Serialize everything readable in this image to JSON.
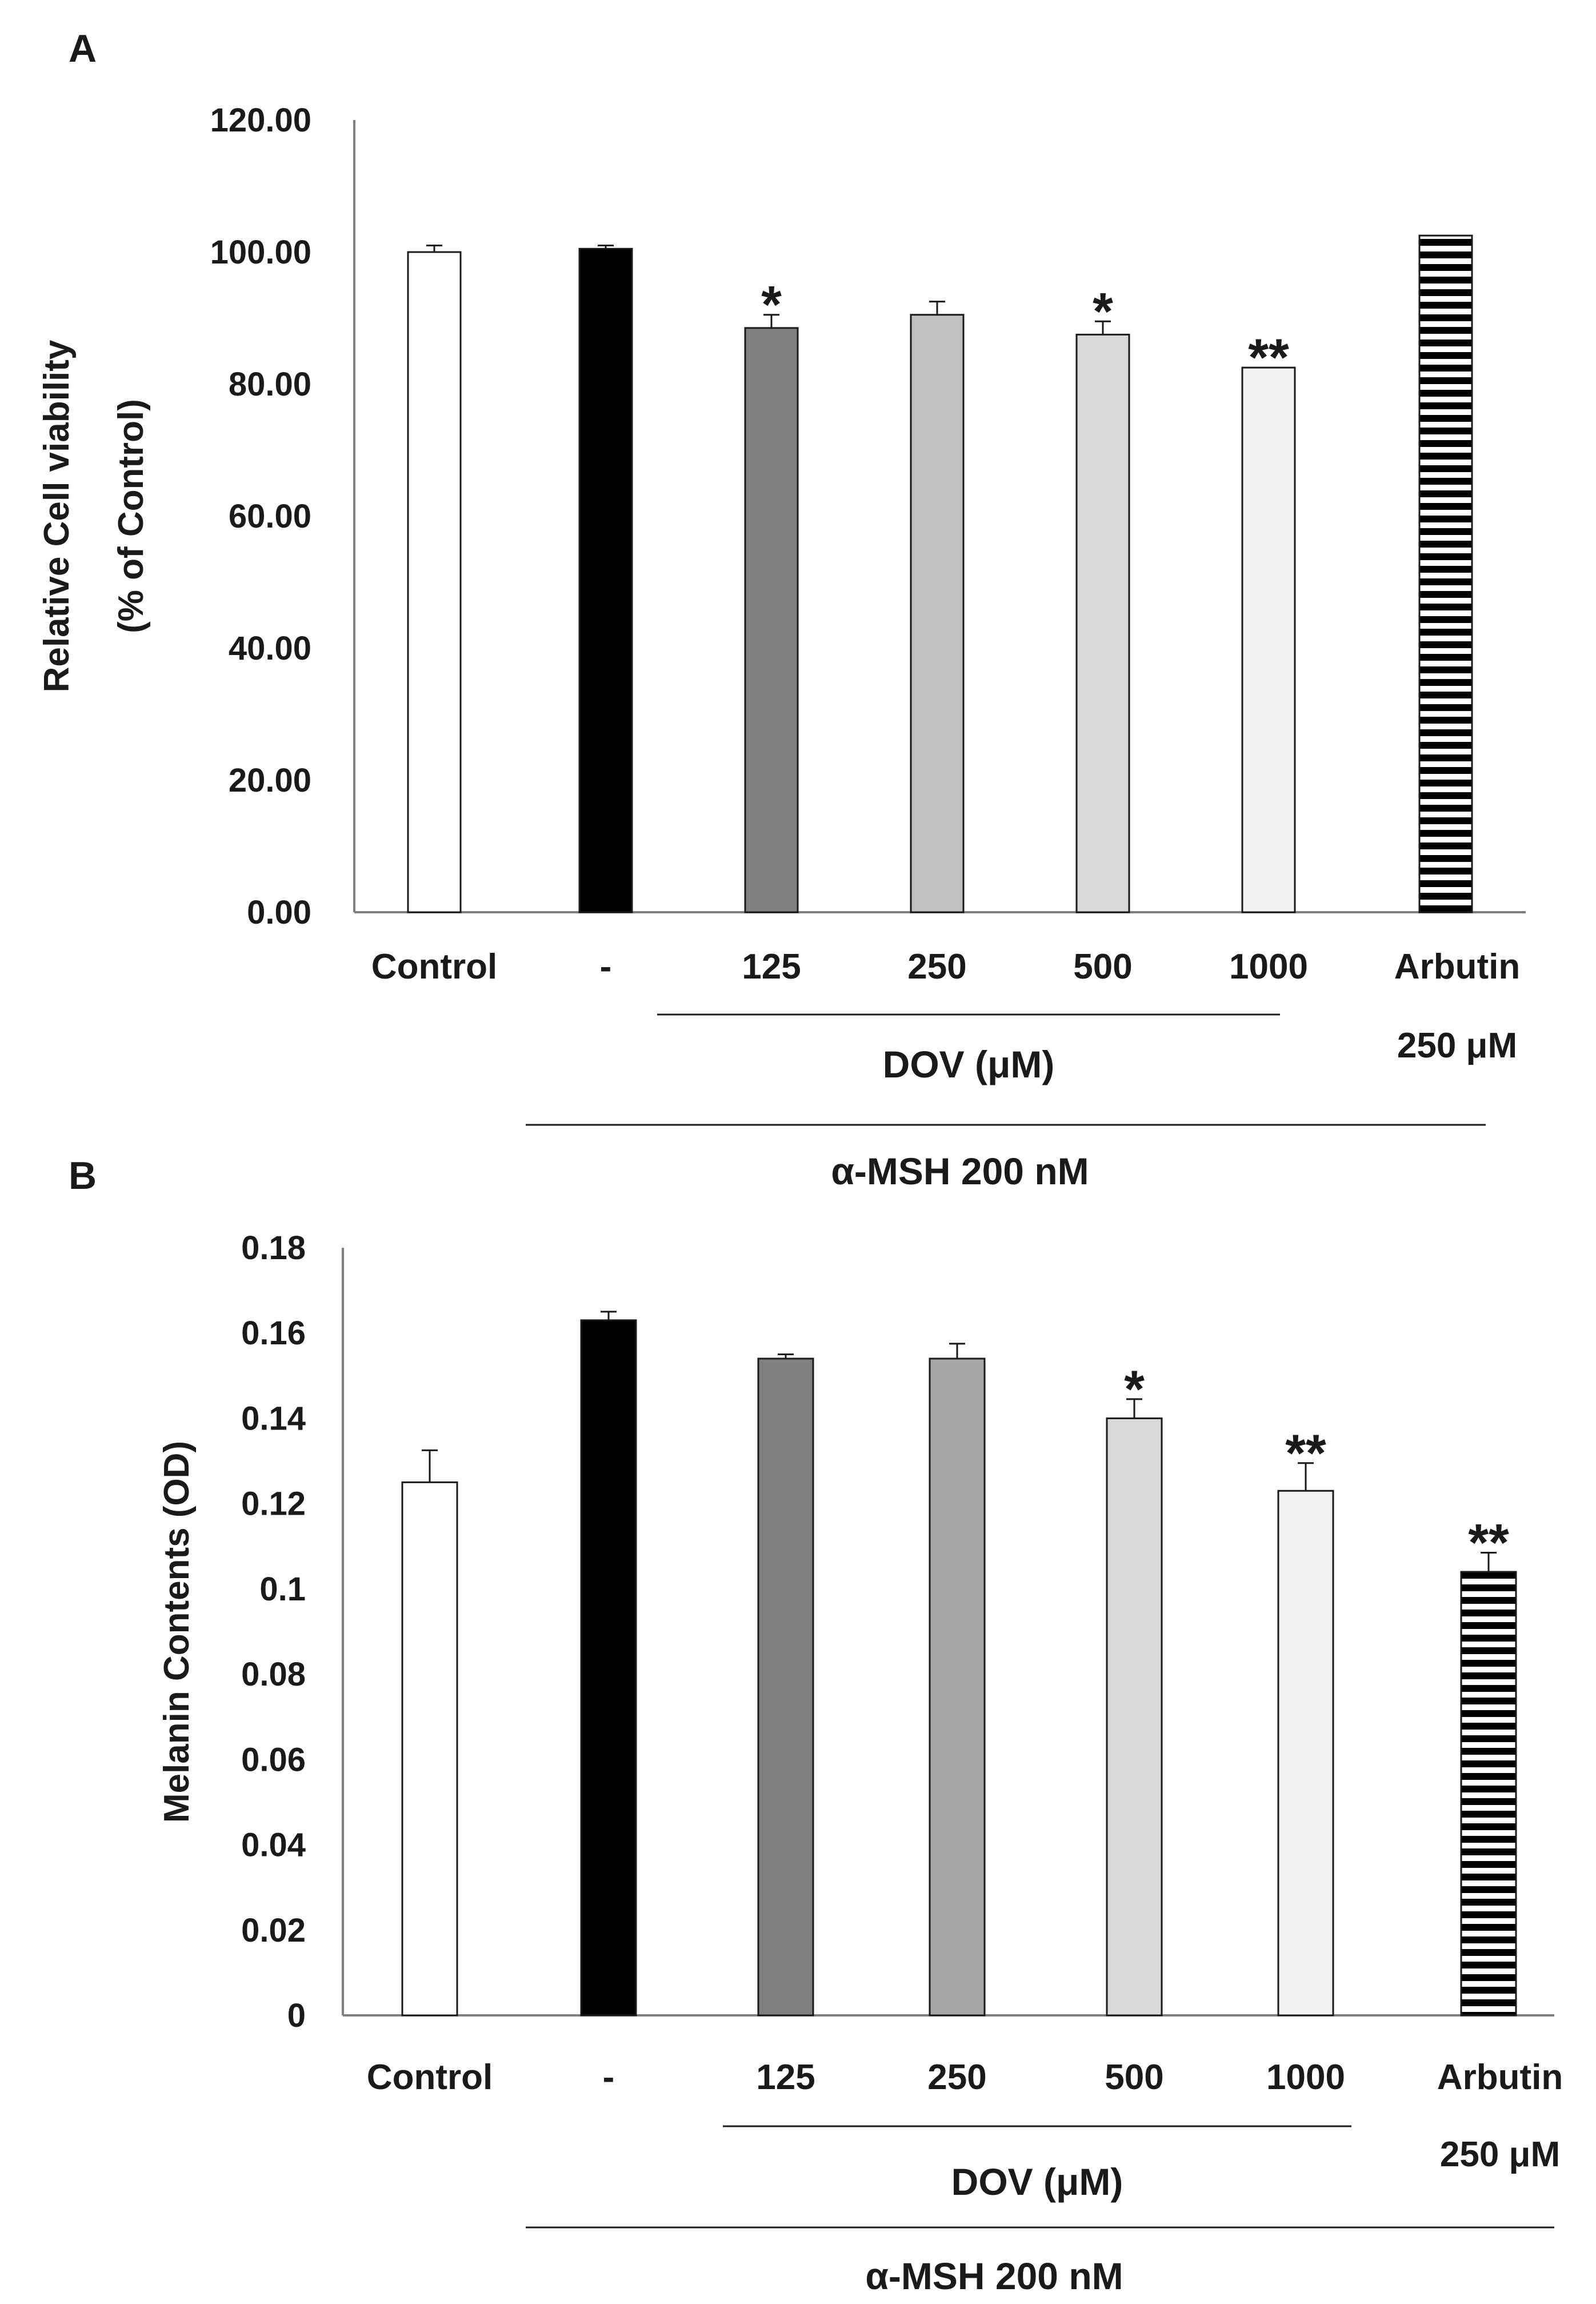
{
  "chart_data": [
    {
      "type": "bar",
      "panel_label": "A",
      "ylabel_lines": [
        "Relative Cell viability",
        "(% of Control)"
      ],
      "ylim": [
        0,
        120
      ],
      "yticks": [
        "0.00",
        "20.00",
        "40.00",
        "60.00",
        "80.00",
        "100.00",
        "120.00"
      ],
      "ytick_values": [
        0,
        20,
        40,
        60,
        80,
        100,
        120
      ],
      "categories": [
        "Control",
        "-",
        "125",
        "250",
        "500",
        "1000",
        "Arbutin"
      ],
      "category_sublabel": {
        "index": 6,
        "text": "250 μM"
      },
      "values": [
        100,
        100.5,
        88.5,
        90.5,
        87.5,
        82.5,
        102.5
      ],
      "errors": [
        1,
        0.5,
        2,
        2,
        2,
        0,
        0
      ],
      "significance": [
        "",
        "",
        "*",
        "",
        "*",
        "**",
        ""
      ],
      "fills": [
        "#ffffff",
        "#000000",
        "#808080",
        "#c0c0c0",
        "#d9d9d9",
        "#f2f2f2",
        "stripes"
      ],
      "dose_group_label": "DOV (μM)",
      "treatment_label": "α-MSH 200 nM",
      "grid": false
    },
    {
      "type": "bar",
      "panel_label": "B",
      "ylabel_lines": [
        "Melanin Contents (OD)"
      ],
      "ylim": [
        0,
        0.18
      ],
      "yticks": [
        "0",
        "0.02",
        "0.04",
        "0.06",
        "0.08",
        "0.1",
        "0.12",
        "0.14",
        "0.16",
        "0.18"
      ],
      "ytick_values": [
        0,
        0.02,
        0.04,
        0.06,
        0.08,
        0.1,
        0.12,
        0.14,
        0.16,
        0.18
      ],
      "categories": [
        "Control",
        "-",
        "125",
        "250",
        "500",
        "1000",
        "Arbutin"
      ],
      "category_sublabel": {
        "index": 6,
        "text": "250 μM"
      },
      "values": [
        0.125,
        0.163,
        0.154,
        0.154,
        0.14,
        0.123,
        0.104
      ],
      "errors": [
        0.0075,
        0.002,
        0.001,
        0.0035,
        0.0045,
        0.0065,
        0.0045
      ],
      "significance": [
        "",
        "",
        "",
        "",
        "*",
        "**",
        "**"
      ],
      "fills": [
        "#ffffff",
        "#000000",
        "#808080",
        "#a6a6a6",
        "#d9d9d9",
        "#f2f2f2",
        "stripes"
      ],
      "dose_group_label": "DOV (μM)",
      "treatment_label": "α-MSH 200 nM",
      "grid": false
    }
  ]
}
